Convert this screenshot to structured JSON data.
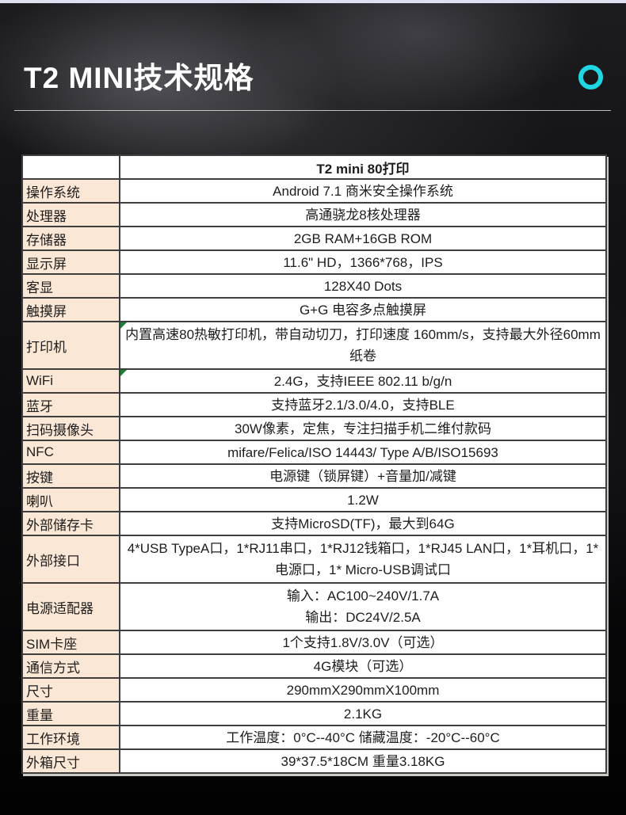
{
  "page": {
    "title": "T2 MINI技术规格"
  },
  "icons": {
    "ring": "circle-outline"
  },
  "colors": {
    "accent_ring": "#1ed7e3",
    "label_cell_bg": "#fbe7d5",
    "marker_green": "#217e38",
    "top_strip": "#dde1ef",
    "grid_line": "#3e3e3e"
  },
  "table": {
    "header": "T2 mini 80打印",
    "rows": [
      {
        "label": "操作系统",
        "value": "Android 7.1 商米安全操作系统"
      },
      {
        "label": "处理器",
        "value": "高通骁龙8核处理器"
      },
      {
        "label": "存储器",
        "value": "2GB RAM+16GB ROM"
      },
      {
        "label": "显示屏",
        "value": "11.6\" HD，1366*768，IPS"
      },
      {
        "label": "客显",
        "value": "128X40 Dots"
      },
      {
        "label": "触摸屏",
        "value": "G+G 电容多点触摸屏"
      },
      {
        "label": "打印机",
        "value": "内置高速80热敏打印机，带自动切刀，打印速度 160mm/s，支持最大外径60mm纸卷",
        "tall": true,
        "marker": true
      },
      {
        "label": "WiFi",
        "value": "2.4G，支持IEEE 802.11 b/g/n",
        "marker": true
      },
      {
        "label": "蓝牙",
        "value": "支持蓝牙2.1/3.0/4.0，支持BLE"
      },
      {
        "label": "扫码摄像头",
        "value": "30W像素，定焦，专注扫描手机二维付款码"
      },
      {
        "label": "NFC",
        "value": "mifare/Felica/ISO 14443/ Type A/B/ISO15693"
      },
      {
        "label": "按键",
        "value": "电源键（锁屏键）+音量加/减键"
      },
      {
        "label": "喇叭",
        "value": "1.2W"
      },
      {
        "label": "外部储存卡",
        "value": "支持MicroSD(TF)，最大到64G"
      },
      {
        "label": "外部接口",
        "value": "4*USB TypeA口，1*RJ11串口，1*RJ12钱箱口，1*RJ45 LAN口，1*耳机口，1*电源口，1* Micro-USB调试口",
        "tall": true
      },
      {
        "label": "电源适配器",
        "value": "输入：AC100~240V/1.7A\n输出：DC24V/2.5A",
        "tall": true
      },
      {
        "label": "SIM卡座",
        "value": "1个支持1.8V/3.0V（可选）"
      },
      {
        "label": "通信方式",
        "value": "4G模块（可选）"
      },
      {
        "label": "尺寸",
        "value": "290mmX290mmX100mm"
      },
      {
        "label": "重量",
        "value": "2.1KG"
      },
      {
        "label": "工作环境",
        "value": "工作温度：0°C--40°C   储藏温度：-20°C--60°C"
      },
      {
        "label": "外箱尺寸",
        "value": "39*37.5*18CM 重量3.18KG"
      }
    ]
  }
}
